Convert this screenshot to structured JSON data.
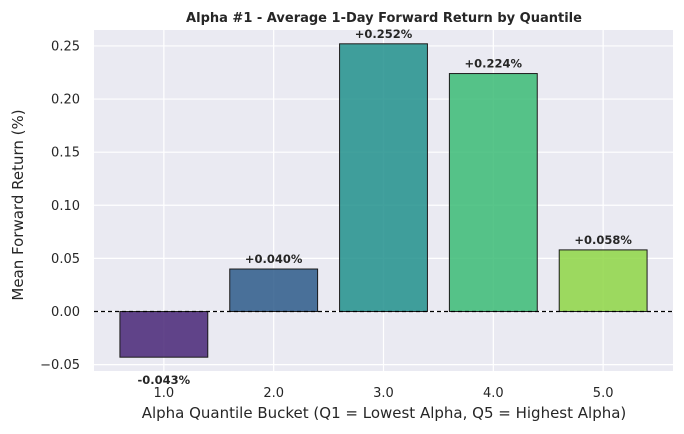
{
  "chart_data": {
    "type": "bar",
    "title": "Alpha #1 - Average 1-Day Forward Return by Quantile",
    "xlabel": "Alpha Quantile Bucket (Q1 = Lowest Alpha, Q5 = Highest Alpha)",
    "ylabel": "Mean Forward Return (%)",
    "categories": [
      "1.0",
      "2.0",
      "3.0",
      "4.0",
      "5.0"
    ],
    "values": [
      -0.043,
      0.04,
      0.252,
      0.224,
      0.058
    ],
    "data_labels": [
      "-0.043%",
      "+0.040%",
      "+0.252%",
      "+0.224%",
      "+0.058%"
    ],
    "colors": [
      "#482677",
      "#2d5b8a",
      "#21918c",
      "#3bbb75",
      "#8ed645"
    ],
    "ylim": [
      -0.056,
      0.265
    ],
    "yticks": [
      -0.05,
      0.0,
      0.05,
      0.1,
      0.15,
      0.2,
      0.25
    ],
    "ytick_labels": [
      "−0.05",
      "0.00",
      "0.05",
      "0.10",
      "0.15",
      "0.20",
      "0.25"
    ],
    "zero_line": {
      "y": 0,
      "style": "dashed",
      "color": "#000000"
    },
    "grid": true,
    "background": "#eaeaf2"
  }
}
